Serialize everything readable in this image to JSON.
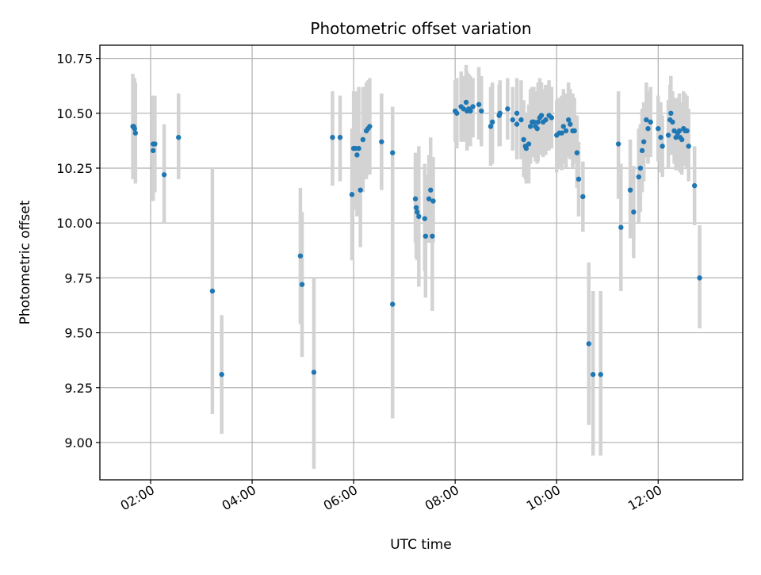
{
  "chart_data": {
    "type": "scatter",
    "title": "Photometric offset variation",
    "xlabel": "UTC time",
    "ylabel": "Photometric offset",
    "x_ticks": [
      "02:00",
      "04:00",
      "06:00",
      "08:00",
      "10:00",
      "12:00"
    ],
    "x_tick_hours": [
      2,
      4,
      6,
      8,
      10,
      12
    ],
    "y_ticks": [
      "9.00",
      "9.25",
      "9.50",
      "9.75",
      "10.00",
      "10.25",
      "10.50",
      "10.75"
    ],
    "y_tick_values": [
      9.0,
      9.25,
      9.5,
      9.75,
      10.0,
      10.25,
      10.5,
      10.75
    ],
    "xlim": [
      "01:00",
      "13:40"
    ],
    "ylim": [
      8.83,
      10.81
    ],
    "grid": true,
    "colors": {
      "points": "#1f77b4",
      "errorbars": "#d3d3d3",
      "grid": "#b0b0b0"
    },
    "series": [
      {
        "points": [
          [
            "01:39",
            10.44,
            10.2,
            10.68
          ],
          [
            "01:40",
            10.44,
            10.22,
            10.66
          ],
          [
            "01:41",
            10.43,
            10.2,
            10.66
          ],
          [
            "01:42",
            10.41,
            10.18,
            10.64
          ],
          [
            "02:03",
            10.36,
            10.13,
            10.58
          ],
          [
            "02:03",
            10.33,
            10.1,
            10.56
          ],
          [
            "02:05",
            10.36,
            10.14,
            10.58
          ],
          [
            "02:16",
            10.22,
            10.0,
            10.45
          ],
          [
            "02:33",
            10.39,
            10.2,
            10.59
          ],
          [
            "03:13",
            9.69,
            9.13,
            10.25
          ],
          [
            "03:24",
            9.31,
            9.04,
            9.58
          ],
          [
            "04:57",
            9.85,
            9.54,
            10.16
          ],
          [
            "04:59",
            9.72,
            9.39,
            10.05
          ],
          [
            "05:13",
            9.32,
            8.88,
            9.75
          ],
          [
            "05:35",
            10.39,
            10.17,
            10.6
          ],
          [
            "05:44",
            10.39,
            10.19,
            10.58
          ],
          [
            "05:58",
            10.13,
            9.83,
            10.43
          ],
          [
            "06:00",
            10.34,
            10.06,
            10.6
          ],
          [
            "06:02",
            10.34,
            10.08,
            10.6
          ],
          [
            "06:04",
            10.31,
            10.03,
            10.59
          ],
          [
            "06:06",
            10.34,
            10.08,
            10.62
          ],
          [
            "06:08",
            10.15,
            9.89,
            10.41
          ],
          [
            "06:11",
            10.38,
            10.14,
            10.62
          ],
          [
            "06:15",
            10.42,
            10.2,
            10.64
          ],
          [
            "06:17",
            10.43,
            10.22,
            10.65
          ],
          [
            "06:19",
            10.44,
            10.22,
            10.66
          ],
          [
            "06:33",
            10.37,
            10.15,
            10.59
          ],
          [
            "06:46",
            10.32,
            10.12,
            10.53
          ],
          [
            "06:46",
            9.63,
            9.11,
            10.15
          ],
          [
            "07:13",
            10.11,
            9.91,
            10.32
          ],
          [
            "07:14",
            10.07,
            9.84,
            10.29
          ],
          [
            "07:15",
            10.05,
            9.83,
            10.27
          ],
          [
            "07:17",
            10.03,
            9.71,
            10.35
          ],
          [
            "07:24",
            10.02,
            9.78,
            10.27
          ],
          [
            "07:25",
            9.94,
            9.66,
            10.22
          ],
          [
            "07:29",
            10.11,
            9.91,
            10.31
          ],
          [
            "07:31",
            10.15,
            9.91,
            10.39
          ],
          [
            "07:33",
            9.94,
            9.6,
            10.28
          ],
          [
            "07:34",
            10.1,
            9.91,
            10.3
          ],
          [
            "08:00",
            10.51,
            10.37,
            10.65
          ],
          [
            "08:02",
            10.5,
            10.34,
            10.66
          ],
          [
            "08:07",
            10.53,
            10.37,
            10.69
          ],
          [
            "08:10",
            10.52,
            10.37,
            10.67
          ],
          [
            "08:13",
            10.55,
            10.39,
            10.72
          ],
          [
            "08:14",
            10.51,
            10.33,
            10.69
          ],
          [
            "08:16",
            10.52,
            10.36,
            10.68
          ],
          [
            "08:18",
            10.51,
            10.35,
            10.67
          ],
          [
            "08:21",
            10.53,
            10.39,
            10.66
          ],
          [
            "08:28",
            10.54,
            10.38,
            10.71
          ],
          [
            "08:31",
            10.51,
            10.35,
            10.67
          ],
          [
            "08:42",
            10.44,
            10.26,
            10.62
          ],
          [
            "08:44",
            10.46,
            10.27,
            10.64
          ],
          [
            "08:52",
            10.49,
            10.35,
            10.63
          ],
          [
            "08:53",
            10.5,
            10.35,
            10.65
          ],
          [
            "09:02",
            10.52,
            10.38,
            10.66
          ],
          [
            "09:08",
            10.47,
            10.33,
            10.62
          ],
          [
            "09:13",
            10.5,
            10.34,
            10.66
          ],
          [
            "09:13",
            10.45,
            10.29,
            10.61
          ],
          [
            "09:18",
            10.47,
            10.29,
            10.65
          ],
          [
            "09:21",
            10.38,
            10.21,
            10.56
          ],
          [
            "09:23",
            10.35,
            10.2,
            10.5
          ],
          [
            "09:24",
            10.34,
            10.18,
            10.49
          ],
          [
            "09:27",
            10.36,
            10.18,
            10.54
          ],
          [
            "09:29",
            10.44,
            10.27,
            10.61
          ],
          [
            "09:31",
            10.46,
            10.3,
            10.62
          ],
          [
            "09:33",
            10.46,
            10.3,
            10.62
          ],
          [
            "09:35",
            10.44,
            10.28,
            10.6
          ],
          [
            "09:37",
            10.43,
            10.27,
            10.59
          ],
          [
            "09:38",
            10.46,
            10.28,
            10.64
          ],
          [
            "09:40",
            10.48,
            10.31,
            10.66
          ],
          [
            "09:42",
            10.49,
            10.34,
            10.64
          ],
          [
            "09:44",
            10.46,
            10.3,
            10.61
          ],
          [
            "09:47",
            10.47,
            10.31,
            10.63
          ],
          [
            "09:51",
            10.49,
            10.33,
            10.65
          ],
          [
            "09:54",
            10.48,
            10.34,
            10.62
          ],
          [
            "10:00",
            10.4,
            10.23,
            10.56
          ],
          [
            "10:03",
            10.41,
            10.25,
            10.57
          ],
          [
            "10:06",
            10.41,
            10.24,
            10.58
          ],
          [
            "10:08",
            10.44,
            10.27,
            10.61
          ],
          [
            "10:11",
            10.42,
            10.25,
            10.59
          ],
          [
            "10:14",
            10.47,
            10.3,
            10.64
          ],
          [
            "10:16",
            10.45,
            10.29,
            10.61
          ],
          [
            "10:19",
            10.42,
            10.25,
            10.59
          ],
          [
            "10:21",
            10.42,
            10.27,
            10.57
          ],
          [
            "10:24",
            10.32,
            10.16,
            10.49
          ],
          [
            "10:26",
            10.2,
            10.03,
            10.37
          ],
          [
            "10:31",
            10.12,
            9.96,
            10.28
          ],
          [
            "10:38",
            9.45,
            9.08,
            9.82
          ],
          [
            "10:43",
            9.31,
            8.94,
            9.69
          ],
          [
            "10:52",
            9.31,
            8.94,
            9.69
          ],
          [
            "11:13",
            10.36,
            10.11,
            10.6
          ],
          [
            "11:16",
            9.98,
            9.69,
            10.27
          ],
          [
            "11:27",
            10.15,
            9.93,
            10.38
          ],
          [
            "11:31",
            10.05,
            9.84,
            10.26
          ],
          [
            "11:37",
            10.21,
            10.0,
            10.43
          ],
          [
            "11:39",
            10.25,
            10.05,
            10.45
          ],
          [
            "11:41",
            10.33,
            10.14,
            10.52
          ],
          [
            "11:43",
            10.37,
            10.19,
            10.55
          ],
          [
            "11:46",
            10.47,
            10.3,
            10.64
          ],
          [
            "11:48",
            10.43,
            10.27,
            10.6
          ],
          [
            "11:51",
            10.46,
            10.3,
            10.62
          ],
          [
            "12:00",
            10.43,
            10.28,
            10.58
          ],
          [
            "12:03",
            10.39,
            10.23,
            10.55
          ],
          [
            "12:05",
            10.35,
            10.21,
            10.49
          ],
          [
            "12:12",
            10.4,
            10.25,
            10.56
          ],
          [
            "12:14",
            10.47,
            10.31,
            10.63
          ],
          [
            "12:15",
            10.5,
            10.33,
            10.67
          ],
          [
            "12:17",
            10.46,
            10.31,
            10.6
          ],
          [
            "12:19",
            10.42,
            10.27,
            10.57
          ],
          [
            "12:21",
            10.39,
            10.24,
            10.54
          ],
          [
            "12:23",
            10.41,
            10.25,
            10.57
          ],
          [
            "12:25",
            10.42,
            10.24,
            10.59
          ],
          [
            "12:26",
            10.39,
            10.23,
            10.55
          ],
          [
            "12:28",
            10.38,
            10.22,
            10.55
          ],
          [
            "12:30",
            10.43,
            10.26,
            10.6
          ],
          [
            "12:32",
            10.42,
            10.26,
            10.59
          ],
          [
            "12:34",
            10.42,
            10.25,
            10.58
          ],
          [
            "12:36",
            10.35,
            10.19,
            10.52
          ],
          [
            "12:43",
            10.17,
            9.99,
            10.35
          ],
          [
            "12:49",
            9.75,
            9.52,
            9.99
          ]
        ]
      }
    ]
  }
}
